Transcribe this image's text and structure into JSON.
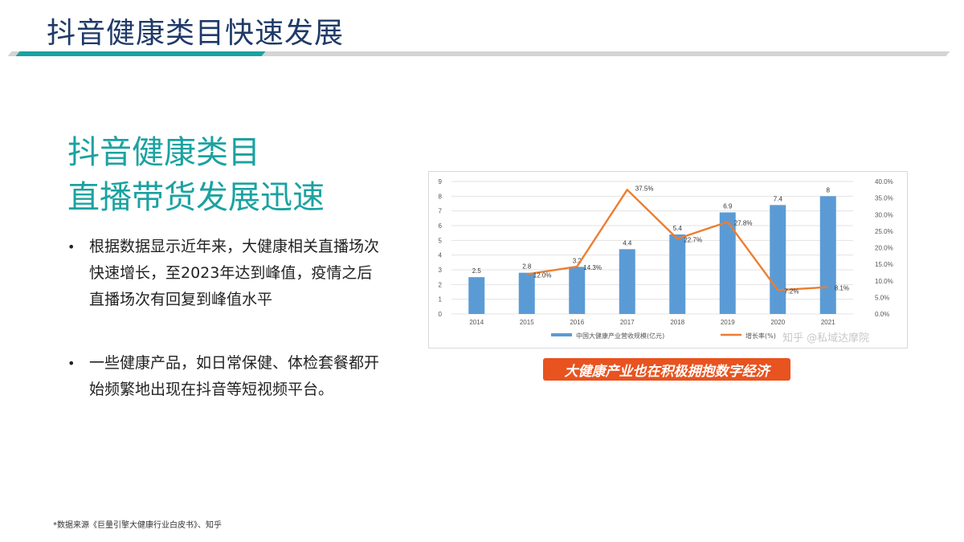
{
  "slide": {
    "title": "抖音健康类目快速发展",
    "heading_line1": "抖音健康类目",
    "heading_line2": "直播带货发展迅速",
    "bullets": [
      "根据数据显示近年来，大健康相关直播场次快速增长，至2023年达到峰值，疫情之后直播场次有回复到峰值水平",
      "一些健康产品，如日常保健、体检套餐都开始频繁地出现在抖音等短视频平台。"
    ],
    "bullet_symbol": "•",
    "banner": "大健康产业也在积极拥抱数字经济",
    "source": "*数据来源《巨量引擎大健康行业白皮书》、知乎",
    "watermark": "知乎 @私域达摩院",
    "colors": {
      "title": "#1f3a68",
      "accent": "#1ba2a1",
      "banner": "#e8531f",
      "bar": "#5b9bd5",
      "line": "#ed7d31"
    }
  },
  "chart_data": {
    "type": "bar",
    "categories": [
      "2014",
      "2015",
      "2016",
      "2017",
      "2018",
      "2019",
      "2020",
      "2021"
    ],
    "series": [
      {
        "name": "中国大健康产业营收规模(亿元)",
        "type": "bar",
        "axis": "left",
        "values": [
          2.5,
          2.8,
          3.2,
          4.4,
          5.4,
          6.9,
          7.4,
          8
        ],
        "labels": [
          "2.5",
          "2.8",
          "3.2",
          "4.4",
          "5.4",
          "6.9",
          "7.4",
          "8"
        ]
      },
      {
        "name": "增长率(%)",
        "type": "line",
        "axis": "right",
        "values": [
          null,
          12.0,
          14.3,
          37.5,
          22.7,
          27.8,
          7.2,
          8.1
        ],
        "labels": [
          "",
          "12.0%",
          "14.3%",
          "37.5%",
          "22.7%",
          "27.8%",
          "7.2%",
          "8.1%"
        ]
      }
    ],
    "ylim_left": [
      0,
      9
    ],
    "yticks_left": [
      "0",
      "1",
      "2",
      "3",
      "4",
      "5",
      "6",
      "7",
      "8",
      "9"
    ],
    "ylim_right": [
      0,
      40
    ],
    "yticks_right": [
      "0.0%",
      "5.0%",
      "10.0%",
      "15.0%",
      "20.0%",
      "25.0%",
      "30.0%",
      "35.0%",
      "40.0%"
    ],
    "grid": true,
    "legend_position": "bottom"
  }
}
